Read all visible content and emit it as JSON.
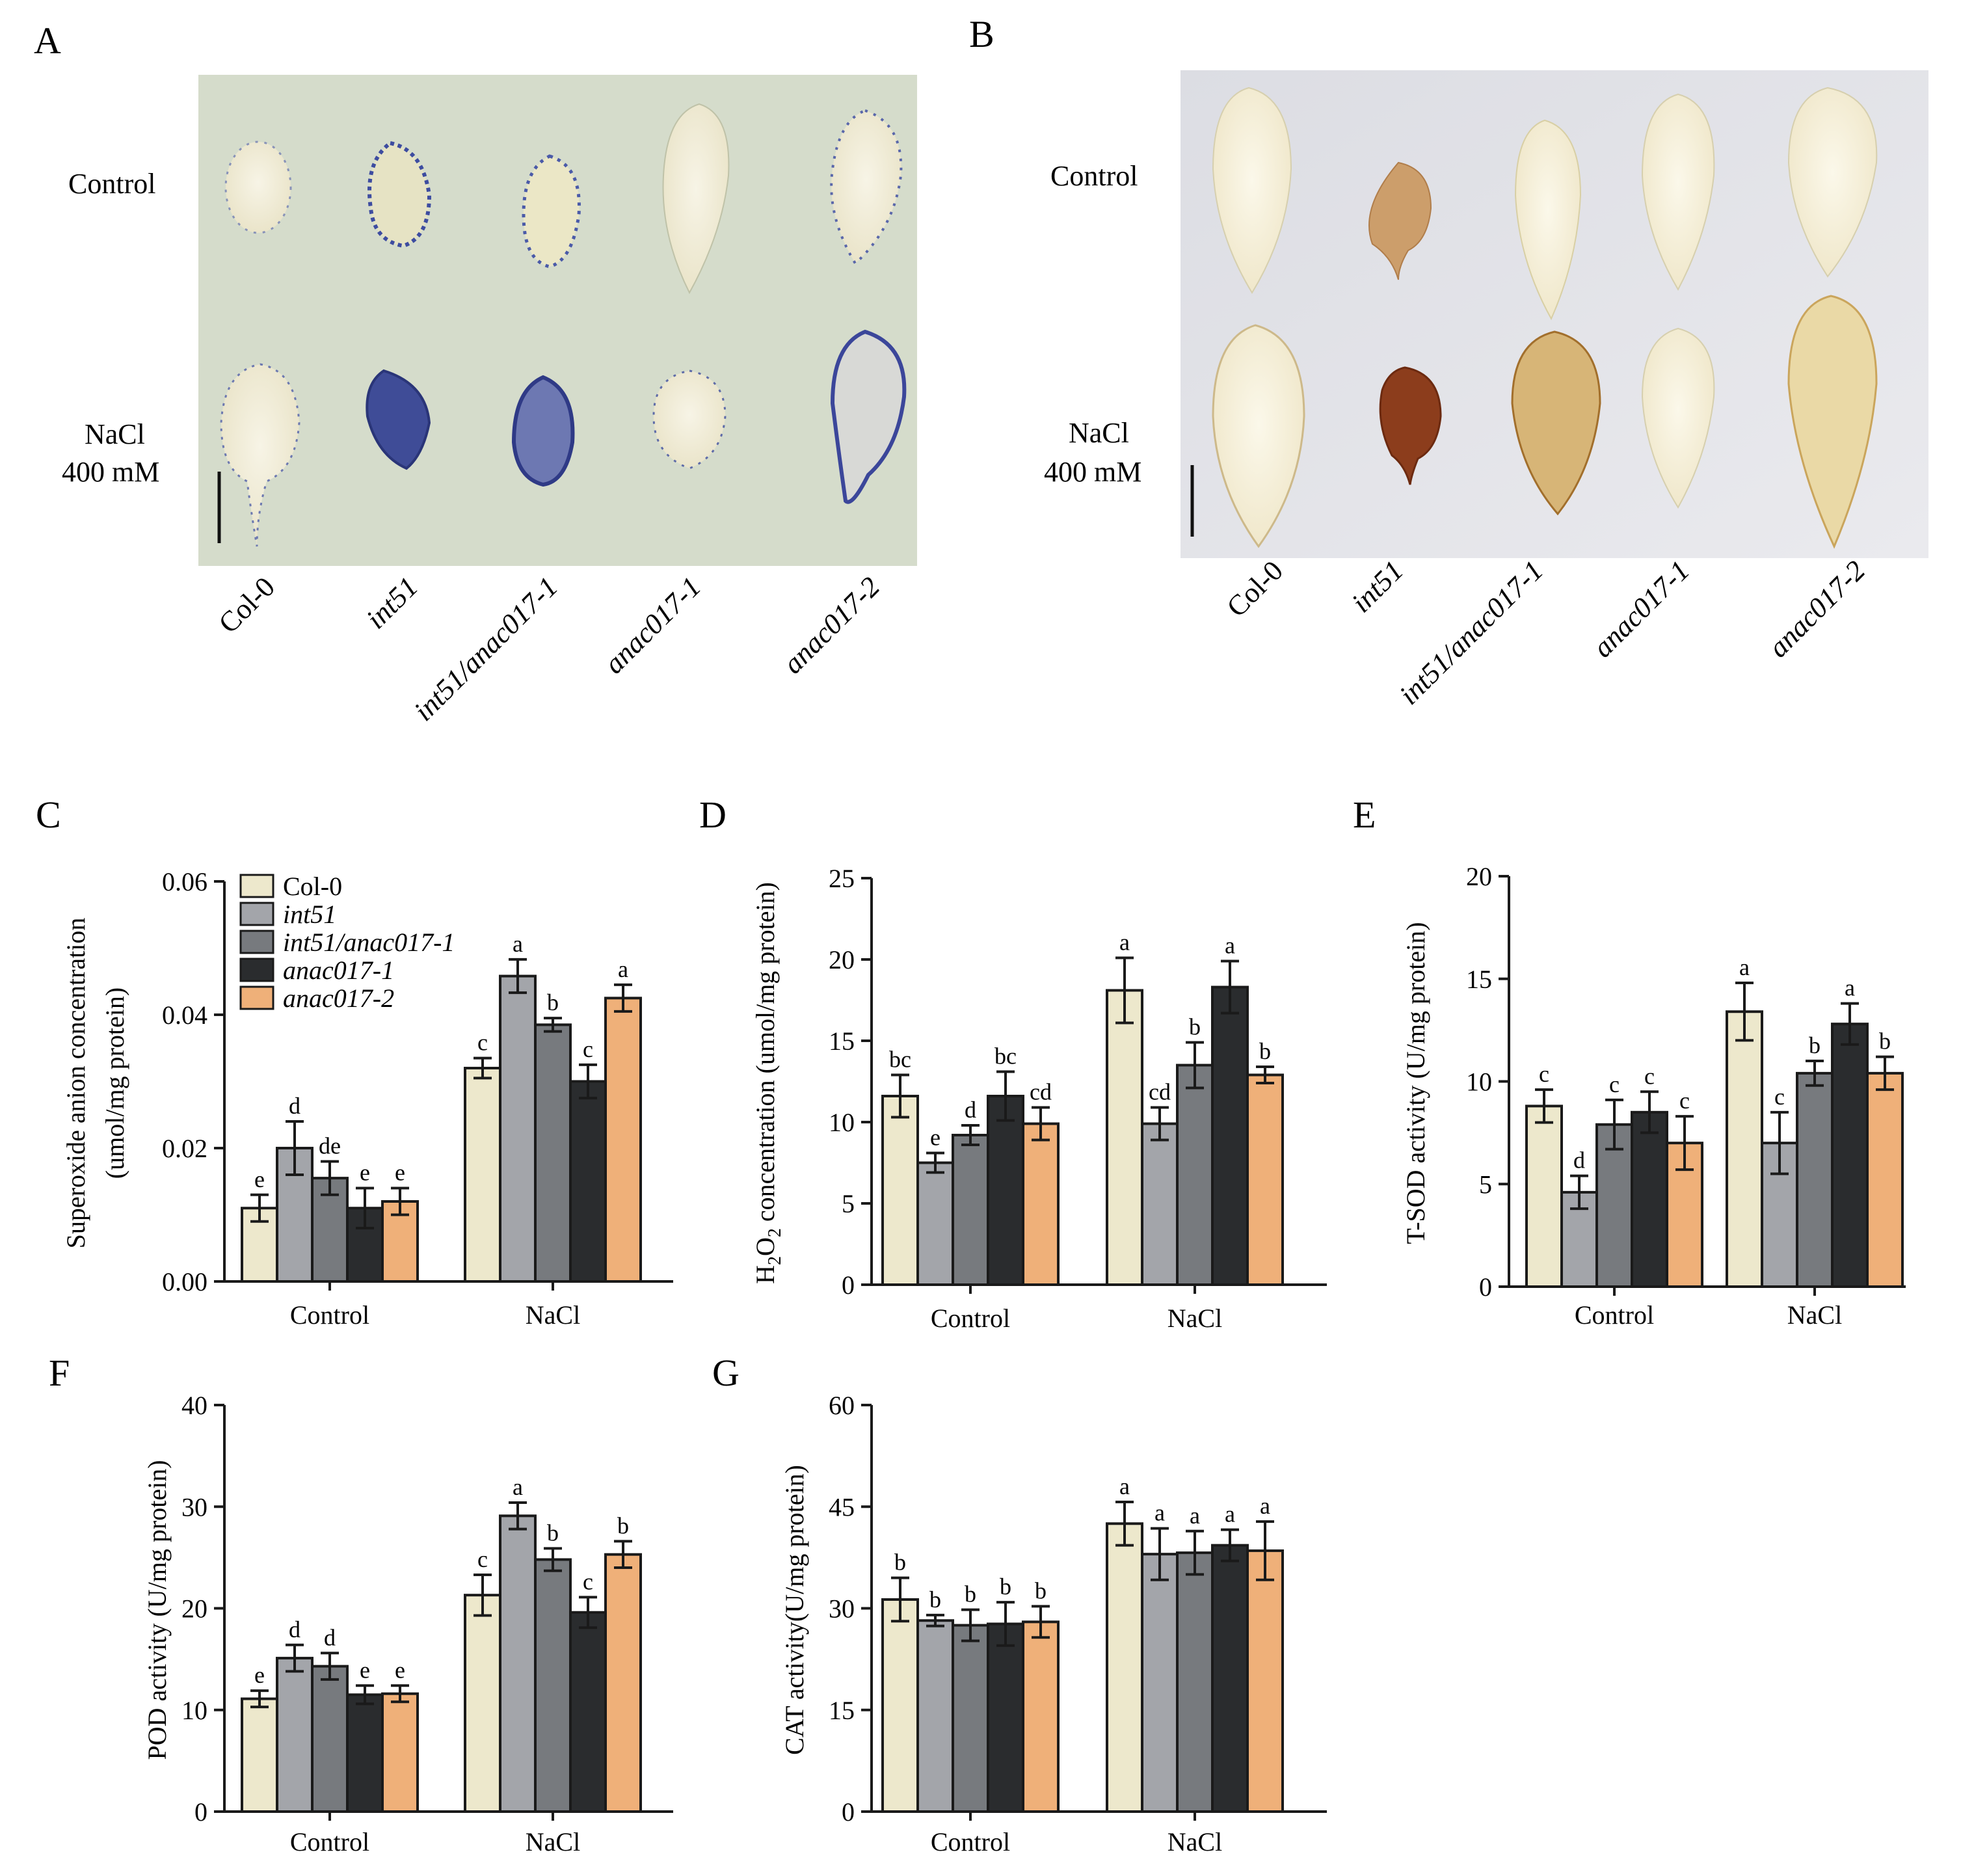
{
  "colors": {
    "Col-0": "#ede8cc",
    "int51": "#a3a5aa",
    "int51/anac017-1": "#777a7e",
    "anac017-1": "#2a2c2e",
    "anac017-2": "#efb079",
    "axis": "#1a1a1a"
  },
  "panels": {
    "A": {
      "letter": "A",
      "row_labels": [
        "Control",
        "NaCl",
        "400 mM"
      ],
      "genotypes": [
        "Col-0",
        "int51",
        "int51/anac017-1",
        "anac017-1",
        "anac017-2"
      ],
      "stain": "blue"
    },
    "B": {
      "letter": "B",
      "row_labels": [
        "Control",
        "NaCl",
        "400 mM"
      ],
      "genotypes": [
        "Col-0",
        "int51",
        "int51/anac017-1",
        "anac017-1",
        "anac017-2"
      ],
      "stain": "brown"
    }
  },
  "legend": {
    "entries": [
      "Col-0",
      "int51",
      "int51/anac017-1",
      "anac017-1",
      "anac017-2"
    ]
  },
  "chart_data": [
    {
      "id": "C",
      "type": "bar",
      "letter": "C",
      "categories": [
        "Control",
        "NaCl"
      ],
      "ylabel_lines": [
        "Superoxide anion concentration",
        "(umol/mg protein)"
      ],
      "ylim": [
        0,
        0.06
      ],
      "yticks": [
        0,
        0.02,
        0.04,
        0.06
      ],
      "ytick_labels": [
        "0.00",
        "0.02",
        "0.04",
        "0.06"
      ],
      "series": [
        {
          "name": "Col-0",
          "values": [
            0.011,
            0.032
          ],
          "errors": [
            0.002,
            0.0015
          ],
          "letters": [
            "e",
            "c"
          ]
        },
        {
          "name": "int51",
          "values": [
            0.02,
            0.0458
          ],
          "errors": [
            0.004,
            0.0025
          ],
          "letters": [
            "d",
            "a"
          ]
        },
        {
          "name": "int51/anac017-1",
          "values": [
            0.0155,
            0.0385
          ],
          "errors": [
            0.0025,
            0.001
          ],
          "letters": [
            "de",
            "b"
          ]
        },
        {
          "name": "anac017-1",
          "values": [
            0.011,
            0.03
          ],
          "errors": [
            0.003,
            0.0025
          ],
          "letters": [
            "e",
            "c"
          ]
        },
        {
          "name": "anac017-2",
          "values": [
            0.012,
            0.0425
          ],
          "errors": [
            0.002,
            0.002
          ],
          "letters": [
            "e",
            "a"
          ]
        }
      ]
    },
    {
      "id": "D",
      "type": "bar",
      "letter": "D",
      "categories": [
        "Control",
        "NaCl"
      ],
      "ylabel_lines": [
        "H2O2 concentration (umol/mg protein)"
      ],
      "ylim": [
        0,
        25
      ],
      "yticks": [
        0,
        5,
        10,
        15,
        20,
        25
      ],
      "ytick_labels": [
        "0",
        "5",
        "10",
        "15",
        "20",
        "25"
      ],
      "series": [
        {
          "name": "Col-0",
          "values": [
            11.6,
            18.1
          ],
          "errors": [
            1.3,
            2.0
          ],
          "letters": [
            "bc",
            "a"
          ]
        },
        {
          "name": "int51",
          "values": [
            7.5,
            9.9
          ],
          "errors": [
            0.6,
            1.0
          ],
          "letters": [
            "e",
            "cd"
          ]
        },
        {
          "name": "int51/anac017-1",
          "values": [
            9.2,
            13.5
          ],
          "errors": [
            0.6,
            1.4
          ],
          "letters": [
            "d",
            "b"
          ]
        },
        {
          "name": "anac017-1",
          "values": [
            11.6,
            18.3
          ],
          "errors": [
            1.5,
            1.6
          ],
          "letters": [
            "bc",
            "a"
          ]
        },
        {
          "name": "anac017-2",
          "values": [
            9.9,
            12.9
          ],
          "errors": [
            1.0,
            0.5
          ],
          "letters": [
            "cd",
            "b"
          ]
        }
      ]
    },
    {
      "id": "E",
      "type": "bar",
      "letter": "E",
      "categories": [
        "Control",
        "NaCl"
      ],
      "ylabel_lines": [
        "T-SOD activity (U/mg protein)"
      ],
      "ylim": [
        0,
        20
      ],
      "yticks": [
        0,
        5,
        10,
        15,
        20
      ],
      "ytick_labels": [
        "0",
        "5",
        "10",
        "15",
        "20"
      ],
      "series": [
        {
          "name": "Col-0",
          "values": [
            8.8,
            13.4
          ],
          "errors": [
            0.8,
            1.4
          ],
          "letters": [
            "c",
            "a"
          ]
        },
        {
          "name": "int51",
          "values": [
            4.6,
            7.0
          ],
          "errors": [
            0.8,
            1.5
          ],
          "letters": [
            "d",
            "c"
          ]
        },
        {
          "name": "int51/anac017-1",
          "values": [
            7.9,
            10.4
          ],
          "errors": [
            1.2,
            0.6
          ],
          "letters": [
            "c",
            "b"
          ]
        },
        {
          "name": "anac017-1",
          "values": [
            8.5,
            12.8
          ],
          "errors": [
            1.0,
            1.0
          ],
          "letters": [
            "c",
            "a"
          ]
        },
        {
          "name": "anac017-2",
          "values": [
            7.0,
            10.4
          ],
          "errors": [
            1.3,
            0.8
          ],
          "letters": [
            "c",
            "b"
          ]
        }
      ]
    },
    {
      "id": "F",
      "type": "bar",
      "letter": "F",
      "categories": [
        "Control",
        "NaCl"
      ],
      "ylabel_lines": [
        "POD activity (U/mg protein)"
      ],
      "ylim": [
        0,
        40
      ],
      "yticks": [
        0,
        10,
        20,
        30,
        40
      ],
      "ytick_labels": [
        "0",
        "10",
        "20",
        "30",
        "40"
      ],
      "series": [
        {
          "name": "Col-0",
          "values": [
            11.1,
            21.3
          ],
          "errors": [
            0.8,
            2.0
          ],
          "letters": [
            "e",
            "c"
          ]
        },
        {
          "name": "int51",
          "values": [
            15.1,
            29.1
          ],
          "errors": [
            1.3,
            1.3
          ],
          "letters": [
            "d",
            "a"
          ]
        },
        {
          "name": "int51/anac017-1",
          "values": [
            14.3,
            24.8
          ],
          "errors": [
            1.3,
            1.1
          ],
          "letters": [
            "d",
            "b"
          ]
        },
        {
          "name": "anac017-1",
          "values": [
            11.5,
            19.6
          ],
          "errors": [
            0.9,
            1.5
          ],
          "letters": [
            "e",
            "c"
          ]
        },
        {
          "name": "anac017-2",
          "values": [
            11.6,
            25.3
          ],
          "errors": [
            0.8,
            1.3
          ],
          "letters": [
            "e",
            "b"
          ]
        }
      ]
    },
    {
      "id": "G",
      "type": "bar",
      "letter": "G",
      "categories": [
        "Control",
        "NaCl"
      ],
      "ylabel_lines": [
        "CAT activity(U/mg protein)"
      ],
      "ylim": [
        0,
        60
      ],
      "yticks": [
        0,
        15,
        30,
        45,
        60
      ],
      "ytick_labels": [
        "0",
        "15",
        "30",
        "45",
        "60"
      ],
      "series": [
        {
          "name": "Col-0",
          "values": [
            31.3,
            42.5
          ],
          "errors": [
            3.2,
            3.2
          ],
          "letters": [
            "b",
            "a"
          ]
        },
        {
          "name": "int51",
          "values": [
            28.2,
            38.0
          ],
          "errors": [
            0.8,
            3.8
          ],
          "letters": [
            "b",
            "a"
          ]
        },
        {
          "name": "int51/anac017-1",
          "values": [
            27.5,
            38.2
          ],
          "errors": [
            2.3,
            3.2
          ],
          "letters": [
            "b",
            "a"
          ]
        },
        {
          "name": "anac017-1",
          "values": [
            27.7,
            39.3
          ],
          "errors": [
            3.2,
            2.3
          ],
          "letters": [
            "b",
            "a"
          ]
        },
        {
          "name": "anac017-2",
          "values": [
            28.0,
            38.5
          ],
          "errors": [
            2.3,
            4.3
          ],
          "letters": [
            "b",
            "a"
          ]
        }
      ]
    }
  ]
}
